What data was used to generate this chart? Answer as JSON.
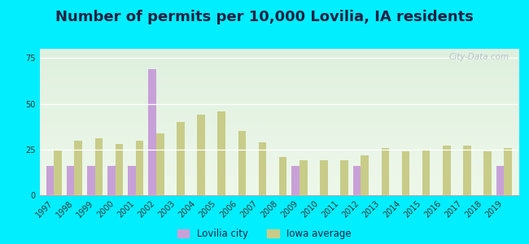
{
  "title": "Number of permits per 10,000 Lovilia, IA residents",
  "years": [
    1997,
    1998,
    1999,
    2000,
    2001,
    2002,
    2003,
    2004,
    2005,
    2006,
    2007,
    2008,
    2009,
    2010,
    2011,
    2012,
    2013,
    2014,
    2015,
    2016,
    2017,
    2018,
    2019
  ],
  "lovilia": [
    16,
    16,
    16,
    16,
    16,
    69,
    0,
    0,
    0,
    0,
    0,
    0,
    16,
    0,
    0,
    16,
    0,
    0,
    0,
    0,
    0,
    0,
    16
  ],
  "iowa": [
    25,
    30,
    31,
    28,
    30,
    34,
    40,
    44,
    46,
    35,
    29,
    21,
    19,
    19,
    19,
    22,
    26,
    24,
    25,
    27,
    27,
    24,
    26
  ],
  "lovilia_color": "#c8a0d8",
  "iowa_color": "#c8cc88",
  "background_color_top": "#e0f0e0",
  "background_color_bottom": "#f0f8ee",
  "outer_background": "#00eeff",
  "ylim": [
    0,
    80
  ],
  "yticks": [
    0,
    25,
    50,
    75
  ],
  "bar_width": 0.38,
  "title_fontsize": 13,
  "title_color": "#222244",
  "tick_fontsize": 7,
  "legend_labels": [
    "Lovilia city",
    "Iowa average"
  ],
  "watermark": "City-Data.com"
}
